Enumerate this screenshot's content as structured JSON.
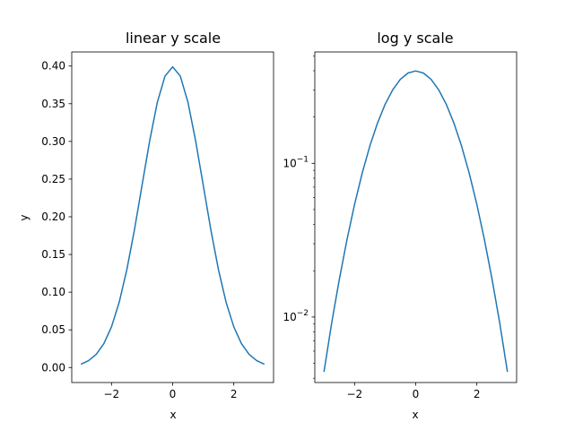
{
  "chart_data": [
    {
      "type": "line",
      "title": "linear y scale",
      "xlabel": "x",
      "ylabel": "y",
      "yscale": "linear",
      "xlim": [
        -3.3,
        3.3
      ],
      "ylim": [
        -0.0199,
        0.4187
      ],
      "xticks": [
        {
          "value": -2,
          "label": "−2"
        },
        {
          "value": 0,
          "label": "0"
        },
        {
          "value": 2,
          "label": "2"
        }
      ],
      "yticks": [
        {
          "value": 0.0,
          "label": "0.00"
        },
        {
          "value": 0.05,
          "label": "0.05"
        },
        {
          "value": 0.1,
          "label": "0.10"
        },
        {
          "value": 0.15,
          "label": "0.15"
        },
        {
          "value": 0.2,
          "label": "0.20"
        },
        {
          "value": 0.25,
          "label": "0.25"
        },
        {
          "value": 0.3,
          "label": "0.30"
        },
        {
          "value": 0.35,
          "label": "0.35"
        },
        {
          "value": 0.4,
          "label": "0.40"
        }
      ],
      "grid": false,
      "series": [
        {
          "color": "#1f77b4",
          "x": [
            -3.0,
            -2.75,
            -2.5,
            -2.25,
            -2.0,
            -1.75,
            -1.5,
            -1.25,
            -1.0,
            -0.75,
            -0.5,
            -0.25,
            0.0,
            0.25,
            0.5,
            0.75,
            1.0,
            1.25,
            1.5,
            1.75,
            2.0,
            2.25,
            2.5,
            2.75,
            3.0
          ],
          "y": [
            0.0044,
            0.0091,
            0.0175,
            0.0317,
            0.054,
            0.0863,
            0.1295,
            0.1826,
            0.242,
            0.3011,
            0.3521,
            0.3867,
            0.3989,
            0.3867,
            0.3521,
            0.3011,
            0.242,
            0.1826,
            0.1295,
            0.0863,
            0.054,
            0.0317,
            0.0175,
            0.0091,
            0.0044
          ]
        }
      ]
    },
    {
      "type": "line",
      "title": "log y scale",
      "xlabel": "x",
      "ylabel": "",
      "yscale": "log",
      "xlim": [
        -3.3,
        3.3
      ],
      "ylim": [
        0.00375,
        0.53
      ],
      "xticks": [
        {
          "value": -2,
          "label": "−2"
        },
        {
          "value": 0,
          "label": "0"
        },
        {
          "value": 2,
          "label": "2"
        }
      ],
      "yticks": [
        {
          "value": 0.1,
          "base": "10",
          "exp": "−1"
        },
        {
          "value": 0.01,
          "base": "10",
          "exp": "−2"
        }
      ],
      "yminor": [
        0.004,
        0.005,
        0.006,
        0.007,
        0.008,
        0.009,
        0.02,
        0.03,
        0.04,
        0.05,
        0.06,
        0.07,
        0.08,
        0.09,
        0.2,
        0.3,
        0.4,
        0.5
      ],
      "grid": false,
      "series": [
        {
          "color": "#1f77b4",
          "x": [
            -3.0,
            -2.75,
            -2.5,
            -2.25,
            -2.0,
            -1.75,
            -1.5,
            -1.25,
            -1.0,
            -0.75,
            -0.5,
            -0.25,
            0.0,
            0.25,
            0.5,
            0.75,
            1.0,
            1.25,
            1.5,
            1.75,
            2.0,
            2.25,
            2.5,
            2.75,
            3.0
          ],
          "y": [
            0.0044,
            0.0091,
            0.0175,
            0.0317,
            0.054,
            0.0863,
            0.1295,
            0.1826,
            0.242,
            0.3011,
            0.3521,
            0.3867,
            0.3989,
            0.3867,
            0.3521,
            0.3011,
            0.242,
            0.1826,
            0.1295,
            0.0863,
            0.054,
            0.0317,
            0.0175,
            0.0091,
            0.0044
          ]
        }
      ]
    }
  ]
}
